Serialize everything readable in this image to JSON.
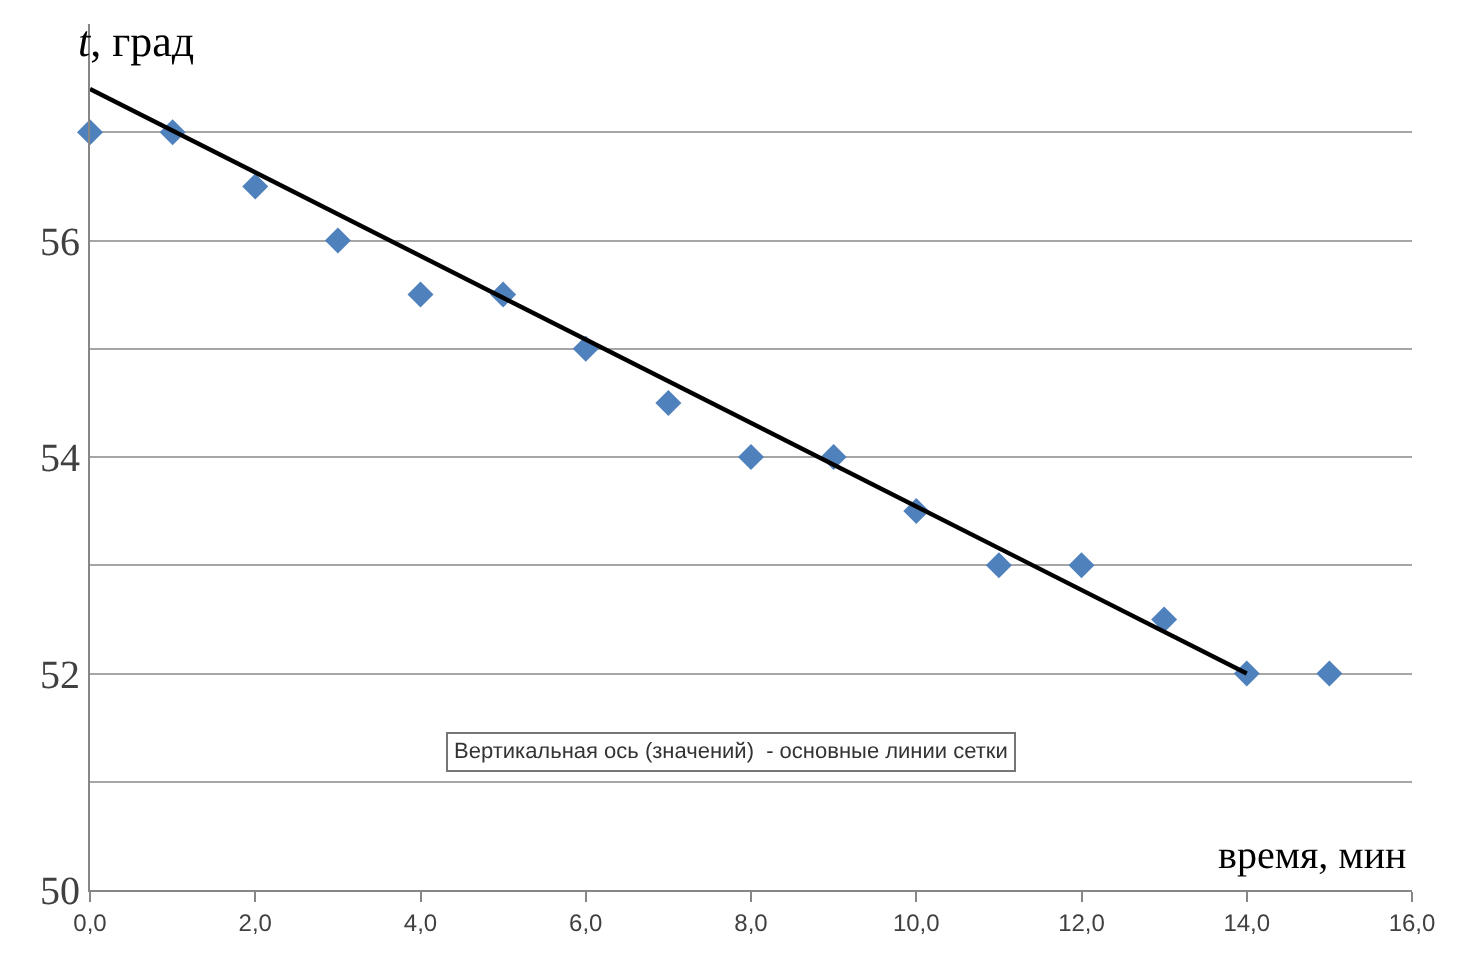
{
  "chart_data": {
    "type": "scatter",
    "ylabel": "t, град",
    "xlabel": "время, мин",
    "x": [
      0,
      1,
      2,
      3,
      4,
      5,
      6,
      7,
      8,
      9,
      10,
      11,
      12,
      13,
      14,
      15
    ],
    "series": [
      {
        "color": "#4f81bd",
        "values": [
          57,
          57,
          56.5,
          56,
          55.5,
          55.5,
          55,
          54.5,
          54,
          54,
          53.5,
          53,
          53,
          52.5,
          52,
          52
        ],
        "marker": "diamond"
      },
      {
        "type": "line",
        "color": "#000000",
        "x": [
          0,
          14
        ],
        "values": [
          57.4,
          52
        ],
        "marker": "none"
      }
    ],
    "xlim": [
      0,
      16
    ],
    "xticks": [
      {
        "value": 0,
        "label": "0,0"
      },
      {
        "value": 2,
        "label": "2,0"
      },
      {
        "value": 4,
        "label": "4,0"
      },
      {
        "value": 6,
        "label": "6,0"
      },
      {
        "value": 8,
        "label": "8,0"
      },
      {
        "value": 10,
        "label": "10,0"
      },
      {
        "value": 12,
        "label": "12,0"
      },
      {
        "value": 14,
        "label": "14,0"
      },
      {
        "value": 16,
        "label": "16,0"
      }
    ],
    "ylim": [
      50,
      58
    ],
    "yticks": [
      50,
      {
        "value": 51,
        "label": null
      },
      52,
      {
        "value": 53,
        "label": null
      },
      54,
      {
        "value": 55,
        "label": null
      },
      56,
      {
        "value": 57,
        "label": null
      }
    ],
    "grid": "y",
    "annotations": [
      "Вертикальная ось (значений)  - основные линии сетки"
    ]
  }
}
